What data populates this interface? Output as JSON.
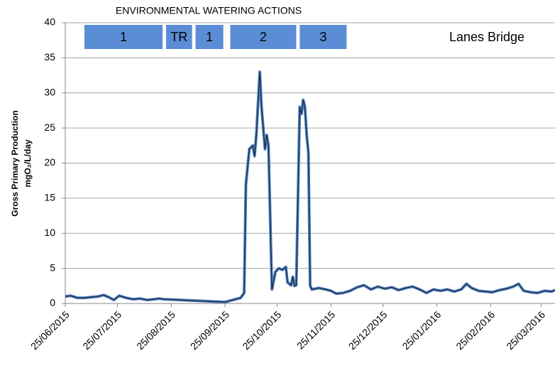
{
  "chart_data": {
    "type": "line",
    "title": "ENVIRONMENTAL WATERING ACTIONS",
    "site_label": "Lanes Bridge",
    "ylabel": [
      "Gross Primary Production",
      "mgO₂/L/day"
    ],
    "watering_actions": [
      {
        "label": "1",
        "start": "2015-07-06",
        "end": "2015-08-20"
      },
      {
        "label": "TR",
        "start": "2015-08-22",
        "end": "2015-09-06"
      },
      {
        "label": "1",
        "start": "2015-09-08",
        "end": "2015-09-24"
      },
      {
        "label": "2",
        "start": "2015-09-28",
        "end": "2015-11-05"
      },
      {
        "label": "3",
        "start": "2015-11-07",
        "end": "2015-12-04"
      }
    ],
    "action_color": "#5b8dd6",
    "x": [
      "2015-06-25",
      "2015-06-28",
      "2015-07-02",
      "2015-07-06",
      "2015-07-10",
      "2015-07-14",
      "2015-07-17",
      "2015-07-20",
      "2015-07-23",
      "2015-07-26",
      "2015-07-30",
      "2015-08-03",
      "2015-08-07",
      "2015-08-11",
      "2015-08-15",
      "2015-08-18",
      "2015-08-21",
      "2015-09-25",
      "2015-10-04",
      "2015-10-06",
      "2015-10-07",
      "2015-10-09",
      "2015-10-11",
      "2015-10-12",
      "2015-10-13",
      "2015-10-15",
      "2015-10-16",
      "2015-10-17",
      "2015-10-18",
      "2015-10-19",
      "2015-10-20",
      "2015-10-22",
      "2015-10-24",
      "2015-10-26",
      "2015-10-28",
      "2015-10-30",
      "2015-10-31",
      "2015-11-02",
      "2015-11-03",
      "2015-11-04",
      "2015-11-05",
      "2015-11-07",
      "2015-11-08",
      "2015-11-09",
      "2015-11-10",
      "2015-11-11",
      "2015-11-12",
      "2015-11-13",
      "2015-11-14",
      "2015-11-18",
      "2015-11-22",
      "2015-11-25",
      "2015-11-28",
      "2015-12-02",
      "2015-12-06",
      "2015-12-10",
      "2015-12-14",
      "2015-12-18",
      "2015-12-22",
      "2015-12-26",
      "2015-12-30",
      "2016-01-03",
      "2016-01-07",
      "2016-01-11",
      "2016-01-15",
      "2016-01-19",
      "2016-01-23",
      "2016-01-27",
      "2016-01-31",
      "2016-02-04",
      "2016-02-08",
      "2016-02-11",
      "2016-02-14",
      "2016-02-18",
      "2016-02-22",
      "2016-02-26",
      "2016-03-01",
      "2016-03-05",
      "2016-03-09",
      "2016-03-12",
      "2016-03-15",
      "2016-03-19",
      "2016-03-23",
      "2016-03-27",
      "2016-03-31",
      "2016-04-02"
    ],
    "series": [
      {
        "color": "#4a7fc4",
        "line_color": "#1a1a1a",
        "values": [
          1.0,
          1.1,
          0.8,
          0.8,
          0.9,
          1.0,
          1.2,
          0.9,
          0.5,
          1.1,
          0.8,
          0.6,
          0.7,
          0.5,
          0.6,
          0.7,
          0.6,
          0.2,
          0.8,
          1.5,
          17,
          22,
          22.5,
          21,
          24,
          33,
          28,
          25,
          22,
          24,
          22.5,
          2.0,
          4.5,
          5.0,
          4.8,
          5.2,
          3.0,
          2.6,
          3.8,
          2.5,
          2.6,
          28,
          27,
          29,
          28,
          24,
          21.5,
          2.5,
          2.0,
          2.2,
          2.0,
          1.8,
          1.4,
          1.5,
          1.8,
          2.3,
          2.6,
          2.0,
          2.4,
          2.1,
          2.3,
          1.9,
          2.2,
          2.4,
          2.0,
          1.5,
          2.0,
          1.8,
          2.0,
          1.7,
          2.0,
          2.8,
          2.2,
          1.8,
          1.7,
          1.6,
          1.9,
          2.1,
          2.4,
          2.8,
          1.8,
          1.6,
          1.5,
          1.8,
          1.7,
          1.9
        ]
      }
    ],
    "xlim": [
      "2015-06-25",
      "2016-04-02"
    ],
    "xticks": [
      {
        "value": "2015-06-25",
        "label": "25/06/2015"
      },
      {
        "value": "2015-07-25",
        "label": "25/07/2015"
      },
      {
        "value": "2015-08-25",
        "label": "25/08/2015"
      },
      {
        "value": "2015-09-25",
        "label": "25/09/2015"
      },
      {
        "value": "2015-10-25",
        "label": "25/10/2015"
      },
      {
        "value": "2015-11-25",
        "label": "25/11/2015"
      },
      {
        "value": "2015-12-25",
        "label": "25/12/2015"
      },
      {
        "value": "2016-01-25",
        "label": "25/01/2016"
      },
      {
        "value": "2016-02-25",
        "label": "25/02/2016"
      },
      {
        "value": "2016-03-25",
        "label": "25/03/2016"
      }
    ],
    "ylim": [
      0,
      40
    ],
    "yticks": [
      0,
      5,
      10,
      15,
      20,
      25,
      30,
      35,
      40
    ],
    "grid": true
  }
}
